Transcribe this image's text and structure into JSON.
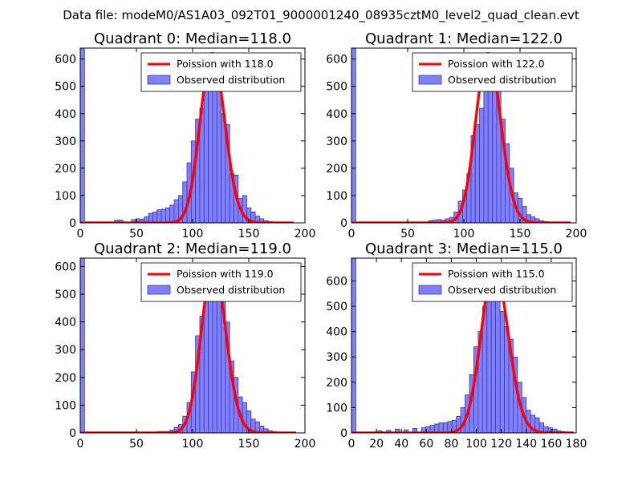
{
  "figure": {
    "suptitle": "Data file: modeM0/AS1A03_092T01_9000001240_08935cztM0_level2_quad_clean.evt",
    "colors": {
      "hist_fill": "#8080ff",
      "hist_edge": "#3b3b9e",
      "curve": "#ff0000",
      "background": "#ffffff"
    }
  },
  "chart_data": [
    {
      "type": "bar",
      "title": "Quadrant 0: Median=118.0",
      "xlim": [
        0,
        200
      ],
      "ylim": [
        0,
        640
      ],
      "xticks": [
        0,
        50,
        100,
        150,
        200
      ],
      "yticks": [
        0,
        100,
        200,
        300,
        400,
        500,
        600
      ],
      "legend": {
        "curve": "Poission with 118.0",
        "hist": "Observed distribution",
        "position": "upper right"
      },
      "hist": {
        "bin_width": 3.8,
        "bins": [
          {
            "x": 0,
            "count": 640
          },
          {
            "x": 30.4,
            "count": 10
          },
          {
            "x": 34.2,
            "count": 10
          },
          {
            "x": 45.6,
            "count": 12
          },
          {
            "x": 49.4,
            "count": 15
          },
          {
            "x": 53.2,
            "count": 14
          },
          {
            "x": 57.0,
            "count": 22
          },
          {
            "x": 60.8,
            "count": 35
          },
          {
            "x": 64.6,
            "count": 40
          },
          {
            "x": 68.4,
            "count": 48
          },
          {
            "x": 72.2,
            "count": 50
          },
          {
            "x": 76.0,
            "count": 55
          },
          {
            "x": 79.8,
            "count": 65
          },
          {
            "x": 83.6,
            "count": 85
          },
          {
            "x": 87.4,
            "count": 100
          },
          {
            "x": 91.2,
            "count": 150
          },
          {
            "x": 95.0,
            "count": 220
          },
          {
            "x": 98.8,
            "count": 300
          },
          {
            "x": 102.6,
            "count": 380
          },
          {
            "x": 106.4,
            "count": 420
          },
          {
            "x": 110.2,
            "count": 500
          },
          {
            "x": 114.0,
            "count": 520
          },
          {
            "x": 117.8,
            "count": 580
          },
          {
            "x": 121.6,
            "count": 545
          },
          {
            "x": 125.4,
            "count": 400
          },
          {
            "x": 129.2,
            "count": 360
          },
          {
            "x": 133.0,
            "count": 180
          },
          {
            "x": 136.8,
            "count": 175
          },
          {
            "x": 140.6,
            "count": 90
          },
          {
            "x": 144.4,
            "count": 100
          },
          {
            "x": 148.2,
            "count": 55
          },
          {
            "x": 152.0,
            "count": 40
          },
          {
            "x": 155.8,
            "count": 25
          },
          {
            "x": 159.6,
            "count": 15
          },
          {
            "x": 163.4,
            "count": 8
          },
          {
            "x": 167.2,
            "count": 5
          },
          {
            "x": 171.0,
            "count": 3
          }
        ]
      },
      "poisson": {
        "mean": 118.0,
        "peak": 620,
        "x_range": [
          0,
          190
        ]
      }
    },
    {
      "type": "bar",
      "title": "Quadrant 1: Median=122.0",
      "xlim": [
        0,
        200
      ],
      "ylim": [
        0,
        640
      ],
      "xticks": [
        0,
        50,
        100,
        150,
        200
      ],
      "yticks": [
        0,
        100,
        200,
        300,
        400,
        500,
        600
      ],
      "legend": {
        "curve": "Poission with 122.0",
        "hist": "Observed distribution",
        "position": "upper right"
      },
      "hist": {
        "bin_width": 3.8,
        "bins": [
          {
            "x": 0,
            "count": 640
          },
          {
            "x": 68.4,
            "count": 8
          },
          {
            "x": 72.2,
            "count": 10
          },
          {
            "x": 76.0,
            "count": 12
          },
          {
            "x": 79.8,
            "count": 10
          },
          {
            "x": 83.6,
            "count": 15
          },
          {
            "x": 87.4,
            "count": 20
          },
          {
            "x": 91.2,
            "count": 40
          },
          {
            "x": 95.0,
            "count": 80
          },
          {
            "x": 98.8,
            "count": 120
          },
          {
            "x": 102.6,
            "count": 180
          },
          {
            "x": 106.4,
            "count": 320
          },
          {
            "x": 110.2,
            "count": 360
          },
          {
            "x": 114.0,
            "count": 420
          },
          {
            "x": 117.8,
            "count": 560
          },
          {
            "x": 121.6,
            "count": 620
          },
          {
            "x": 125.4,
            "count": 610
          },
          {
            "x": 129.2,
            "count": 540
          },
          {
            "x": 133.0,
            "count": 380
          },
          {
            "x": 136.8,
            "count": 290
          },
          {
            "x": 140.6,
            "count": 200
          },
          {
            "x": 144.4,
            "count": 110
          },
          {
            "x": 148.2,
            "count": 90
          },
          {
            "x": 152.0,
            "count": 60
          },
          {
            "x": 155.8,
            "count": 30
          },
          {
            "x": 159.6,
            "count": 22
          },
          {
            "x": 163.4,
            "count": 15
          },
          {
            "x": 167.2,
            "count": 8
          },
          {
            "x": 171.0,
            "count": 5
          },
          {
            "x": 174.8,
            "count": 3
          }
        ]
      },
      "poisson": {
        "mean": 122.0,
        "peak": 620,
        "x_range": [
          0,
          195
        ]
      }
    },
    {
      "type": "bar",
      "title": "Quadrant 2: Median=119.0",
      "xlim": [
        0,
        200
      ],
      "ylim": [
        0,
        630
      ],
      "xticks": [
        0,
        50,
        100,
        150,
        200
      ],
      "yticks": [
        0,
        100,
        200,
        300,
        400,
        500,
        600
      ],
      "legend": {
        "curve": "Poission with 119.0",
        "hist": "Observed distribution",
        "position": "upper right"
      },
      "hist": {
        "bin_width": 3.8,
        "bins": [
          {
            "x": 0,
            "count": 630
          },
          {
            "x": 60.8,
            "count": 2
          },
          {
            "x": 64.6,
            "count": 3
          },
          {
            "x": 68.4,
            "count": 5
          },
          {
            "x": 72.2,
            "count": 5
          },
          {
            "x": 76.0,
            "count": 5
          },
          {
            "x": 79.8,
            "count": 10
          },
          {
            "x": 83.6,
            "count": 20
          },
          {
            "x": 87.4,
            "count": 30
          },
          {
            "x": 91.2,
            "count": 60
          },
          {
            "x": 95.0,
            "count": 110
          },
          {
            "x": 98.8,
            "count": 220
          },
          {
            "x": 102.6,
            "count": 350
          },
          {
            "x": 106.4,
            "count": 420
          },
          {
            "x": 110.2,
            "count": 500
          },
          {
            "x": 114.0,
            "count": 540
          },
          {
            "x": 117.8,
            "count": 600
          },
          {
            "x": 121.6,
            "count": 520
          },
          {
            "x": 125.4,
            "count": 480
          },
          {
            "x": 129.2,
            "count": 400
          },
          {
            "x": 133.0,
            "count": 260
          },
          {
            "x": 136.8,
            "count": 200
          },
          {
            "x": 140.6,
            "count": 130
          },
          {
            "x": 144.4,
            "count": 110
          },
          {
            "x": 148.2,
            "count": 80
          },
          {
            "x": 152.0,
            "count": 50
          },
          {
            "x": 155.8,
            "count": 40
          },
          {
            "x": 159.6,
            "count": 25
          },
          {
            "x": 163.4,
            "count": 15
          },
          {
            "x": 167.2,
            "count": 8
          },
          {
            "x": 171.0,
            "count": 5
          },
          {
            "x": 174.8,
            "count": 3
          }
        ]
      },
      "poisson": {
        "mean": 119.0,
        "peak": 605,
        "x_range": [
          0,
          192
        ]
      }
    },
    {
      "type": "bar",
      "title": "Quadrant 3: Median=115.0",
      "xlim": [
        0,
        180
      ],
      "ylim": [
        0,
        690
      ],
      "xticks": [
        0,
        20,
        40,
        60,
        80,
        100,
        120,
        140,
        160,
        180
      ],
      "yticks": [
        0,
        100,
        200,
        300,
        400,
        500,
        600
      ],
      "legend": {
        "curve": "Poission with 115.0",
        "hist": "Observed distribution",
        "position": "upper right"
      },
      "hist": {
        "bin_width": 3.5,
        "bins": [
          {
            "x": 0,
            "count": 690
          },
          {
            "x": 21.0,
            "count": 8
          },
          {
            "x": 28.0,
            "count": 10
          },
          {
            "x": 35.0,
            "count": 15
          },
          {
            "x": 42.0,
            "count": 12
          },
          {
            "x": 49.0,
            "count": 18
          },
          {
            "x": 56.0,
            "count": 20
          },
          {
            "x": 59.5,
            "count": 25
          },
          {
            "x": 63.0,
            "count": 30
          },
          {
            "x": 66.5,
            "count": 35
          },
          {
            "x": 70.0,
            "count": 40
          },
          {
            "x": 73.5,
            "count": 40
          },
          {
            "x": 77.0,
            "count": 45
          },
          {
            "x": 80.5,
            "count": 50
          },
          {
            "x": 84.0,
            "count": 65
          },
          {
            "x": 87.5,
            "count": 100
          },
          {
            "x": 91.0,
            "count": 150
          },
          {
            "x": 94.5,
            "count": 230
          },
          {
            "x": 98.0,
            "count": 340
          },
          {
            "x": 101.5,
            "count": 400
          },
          {
            "x": 105.0,
            "count": 500
          },
          {
            "x": 108.5,
            "count": 610
          },
          {
            "x": 112.0,
            "count": 600
          },
          {
            "x": 115.5,
            "count": 540
          },
          {
            "x": 119.0,
            "count": 480
          },
          {
            "x": 122.5,
            "count": 420
          },
          {
            "x": 126.0,
            "count": 370
          },
          {
            "x": 129.5,
            "count": 300
          },
          {
            "x": 133.0,
            "count": 200
          },
          {
            "x": 136.5,
            "count": 140
          },
          {
            "x": 140.0,
            "count": 90
          },
          {
            "x": 143.5,
            "count": 70
          },
          {
            "x": 147.0,
            "count": 60
          },
          {
            "x": 150.5,
            "count": 40
          },
          {
            "x": 154.0,
            "count": 25
          },
          {
            "x": 157.5,
            "count": 20
          },
          {
            "x": 161.0,
            "count": 15
          },
          {
            "x": 164.5,
            "count": 8
          },
          {
            "x": 168.0,
            "count": 5
          }
        ]
      },
      "poisson": {
        "mean": 115.0,
        "peak": 655,
        "x_range": [
          0,
          178
        ]
      }
    }
  ]
}
